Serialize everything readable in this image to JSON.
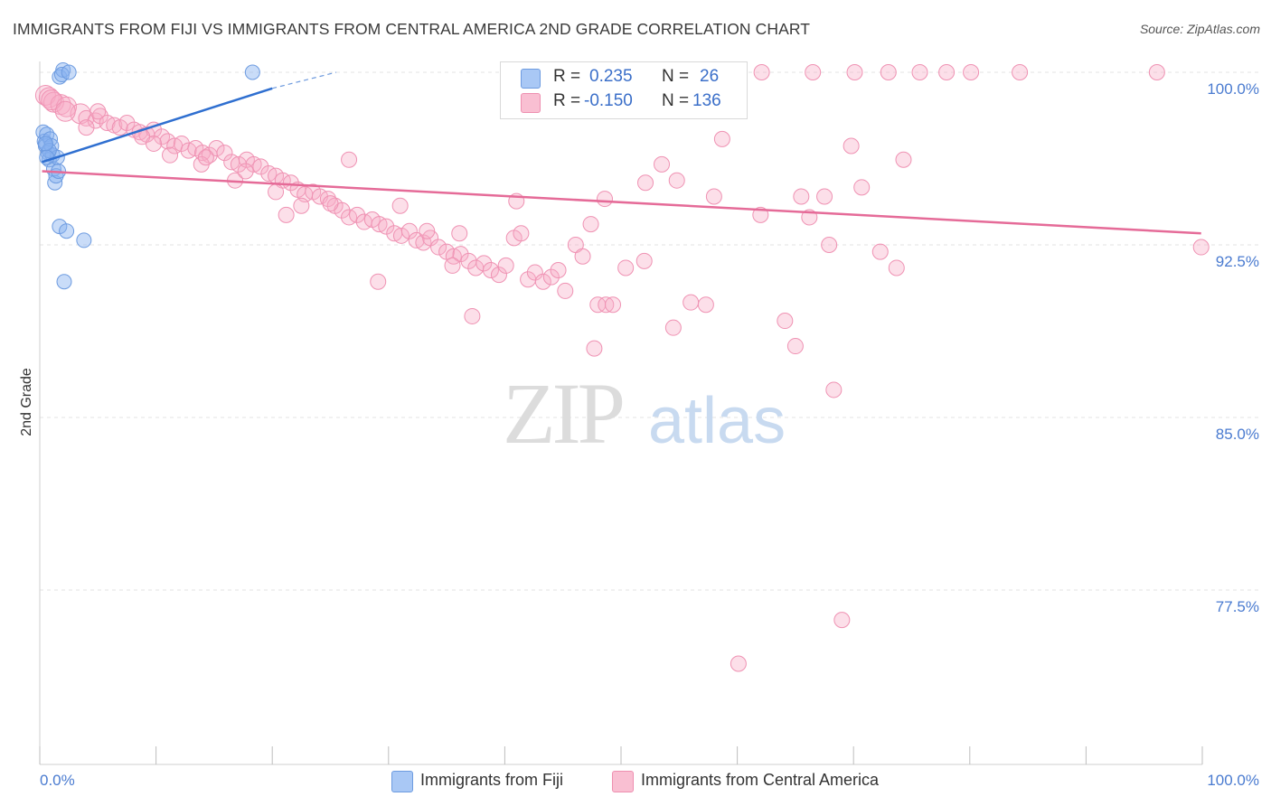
{
  "header": {
    "title": "IMMIGRANTS FROM FIJI VS IMMIGRANTS FROM CENTRAL AMERICA 2ND GRADE CORRELATION CHART",
    "source": "Source: ZipAtlas.com"
  },
  "watermark": {
    "zip": "ZIP",
    "atlas": "atlas"
  },
  "legend": {
    "rows": [
      {
        "r_label": "R =",
        "r_value": "0.235",
        "n_label": "N =",
        "n_value": "26",
        "color": "#a9c8f5",
        "border": "#6d9be0"
      },
      {
        "r_label": "R =",
        "r_value": "-0.150",
        "n_label": "N =",
        "n_value": "136",
        "color": "#f9bfd2",
        "border": "#ee8fb0"
      }
    ]
  },
  "bottom_legend": [
    {
      "label": "Immigrants from Fiji",
      "color": "#a9c8f5",
      "border": "#6d9be0"
    },
    {
      "label": "Immigrants from Central America",
      "color": "#f9bfd2",
      "border": "#ee8fb0"
    }
  ],
  "colors": {
    "fiji_fill": "rgba(135,178,240,0.45)",
    "fiji_stroke": "#6d9be0",
    "fiji_line": "#2f6fd0",
    "ca_fill": "rgba(247,170,198,0.38)",
    "ca_stroke": "#ef92b3",
    "ca_line": "#e56b98",
    "grid": "#e3e3e3",
    "tick_text": "#4a7bd0"
  },
  "chart_data": {
    "type": "scatter",
    "title": "IMMIGRANTS FROM FIJI VS IMMIGRANTS FROM CENTRAL AMERICA 2ND GRADE CORRELATION CHART",
    "xlabel": "",
    "ylabel": "2nd Grade",
    "xlim": [
      0,
      100
    ],
    "ylim": [
      70.0,
      100.5
    ],
    "x_tick_labels": [
      "0.0%",
      "100.0%"
    ],
    "y_ticks": [
      {
        "value": 100.0,
        "label": "100.0%"
      },
      {
        "value": 92.5,
        "label": "92.5%"
      },
      {
        "value": 85.0,
        "label": "85.0%"
      },
      {
        "value": 77.5,
        "label": "77.5%"
      }
    ],
    "grid": true,
    "legend_placement": "top-center",
    "series": [
      {
        "name": "Immigrants from Fiji",
        "R": 0.235,
        "N": 26,
        "trend": {
          "x": [
            0.2,
            20.0
          ],
          "y": [
            96.1,
            99.3
          ],
          "dashed_to": [
            25.5,
            100.0
          ]
        },
        "points": [
          [
            0.3,
            97.4
          ],
          [
            0.4,
            97.0
          ],
          [
            0.5,
            96.8
          ],
          [
            0.6,
            97.3
          ],
          [
            0.7,
            96.5
          ],
          [
            0.8,
            96.2
          ],
          [
            0.9,
            97.1
          ],
          [
            1.0,
            96.8
          ],
          [
            1.1,
            96.4
          ],
          [
            1.2,
            95.8
          ],
          [
            1.3,
            95.2
          ],
          [
            1.4,
            95.5
          ],
          [
            1.5,
            96.3
          ],
          [
            1.6,
            95.7
          ],
          [
            0.8,
            96.6
          ],
          [
            0.5,
            96.9
          ],
          [
            1.7,
            99.8
          ],
          [
            2.0,
            100.1
          ],
          [
            1.9,
            99.9
          ],
          [
            2.5,
            100.0
          ],
          [
            18.3,
            100.0
          ],
          [
            1.7,
            93.3
          ],
          [
            2.3,
            93.1
          ],
          [
            3.8,
            92.7
          ],
          [
            2.1,
            90.9
          ],
          [
            0.6,
            96.3
          ]
        ]
      },
      {
        "name": "Immigrants from Central America",
        "R": -0.15,
        "N": 136,
        "trend": {
          "x": [
            0.2,
            99.9
          ],
          "y": [
            95.7,
            93.0
          ]
        },
        "points": [
          [
            0.5,
            99.0
          ],
          [
            0.8,
            98.9
          ],
          [
            1.2,
            98.7
          ],
          [
            1.8,
            98.6
          ],
          [
            2.3,
            98.5
          ],
          [
            3.5,
            98.2
          ],
          [
            4.0,
            98.0
          ],
          [
            4.8,
            97.9
          ],
          [
            5.2,
            98.1
          ],
          [
            5.8,
            97.8
          ],
          [
            6.4,
            97.7
          ],
          [
            6.9,
            97.6
          ],
          [
            7.5,
            97.8
          ],
          [
            8.1,
            97.5
          ],
          [
            8.6,
            97.4
          ],
          [
            9.2,
            97.3
          ],
          [
            9.8,
            97.5
          ],
          [
            10.5,
            97.2
          ],
          [
            11.0,
            97.0
          ],
          [
            11.6,
            96.8
          ],
          [
            12.2,
            96.9
          ],
          [
            12.8,
            96.6
          ],
          [
            13.4,
            96.7
          ],
          [
            14.0,
            96.5
          ],
          [
            14.6,
            96.4
          ],
          [
            15.2,
            96.7
          ],
          [
            15.9,
            96.5
          ],
          [
            16.5,
            96.1
          ],
          [
            17.1,
            96.0
          ],
          [
            17.8,
            96.2
          ],
          [
            18.4,
            96.0
          ],
          [
            19.0,
            95.9
          ],
          [
            19.7,
            95.6
          ],
          [
            20.3,
            95.5
          ],
          [
            20.9,
            95.3
          ],
          [
            21.6,
            95.2
          ],
          [
            22.2,
            94.9
          ],
          [
            22.8,
            94.7
          ],
          [
            23.5,
            94.8
          ],
          [
            24.1,
            94.6
          ],
          [
            24.8,
            94.5
          ],
          [
            25.4,
            94.2
          ],
          [
            26.0,
            94.0
          ],
          [
            26.6,
            93.7
          ],
          [
            27.3,
            93.8
          ],
          [
            27.9,
            93.5
          ],
          [
            28.6,
            93.6
          ],
          [
            29.2,
            93.4
          ],
          [
            29.8,
            93.3
          ],
          [
            30.5,
            93.0
          ],
          [
            31.1,
            92.9
          ],
          [
            31.8,
            93.1
          ],
          [
            32.4,
            92.7
          ],
          [
            33.0,
            92.6
          ],
          [
            33.6,
            92.8
          ],
          [
            34.3,
            92.4
          ],
          [
            35.0,
            92.2
          ],
          [
            35.6,
            92.0
          ],
          [
            36.2,
            92.1
          ],
          [
            36.9,
            91.8
          ],
          [
            37.5,
            91.5
          ],
          [
            38.2,
            91.7
          ],
          [
            38.8,
            91.4
          ],
          [
            39.5,
            91.2
          ],
          [
            40.1,
            91.6
          ],
          [
            40.8,
            92.8
          ],
          [
            41.4,
            93.0
          ],
          [
            42.0,
            91.0
          ],
          [
            42.6,
            91.3
          ],
          [
            43.3,
            90.9
          ],
          [
            44.0,
            91.1
          ],
          [
            44.6,
            91.4
          ],
          [
            45.2,
            90.5
          ],
          [
            46.1,
            92.5
          ],
          [
            46.7,
            92.0
          ],
          [
            47.4,
            93.4
          ],
          [
            48.0,
            89.9
          ],
          [
            48.7,
            89.9
          ],
          [
            49.3,
            89.9
          ],
          [
            50.4,
            91.5
          ],
          [
            52.1,
            95.2
          ],
          [
            53.5,
            96.0
          ],
          [
            54.8,
            95.3
          ],
          [
            58.7,
            97.1
          ],
          [
            58.0,
            94.6
          ],
          [
            62.0,
            93.8
          ],
          [
            64.1,
            89.2
          ],
          [
            65.0,
            88.1
          ],
          [
            68.3,
            86.2
          ],
          [
            65.5,
            94.6
          ],
          [
            67.5,
            94.6
          ],
          [
            67.9,
            92.5
          ],
          [
            69.8,
            96.8
          ],
          [
            74.3,
            96.2
          ],
          [
            70.7,
            95.0
          ],
          [
            66.2,
            93.7
          ],
          [
            72.3,
            92.2
          ],
          [
            73.7,
            91.5
          ],
          [
            69.0,
            76.2
          ],
          [
            60.1,
            74.3
          ],
          [
            56.0,
            90.0
          ],
          [
            57.3,
            89.9
          ],
          [
            54.5,
            88.9
          ],
          [
            52.0,
            91.8
          ],
          [
            47.7,
            88.0
          ],
          [
            33.3,
            93.1
          ],
          [
            36.1,
            93.0
          ],
          [
            22.5,
            94.2
          ],
          [
            21.2,
            93.8
          ],
          [
            29.1,
            90.9
          ],
          [
            37.2,
            89.4
          ],
          [
            4.0,
            97.6
          ],
          [
            1.0,
            98.8
          ],
          [
            2.2,
            98.3
          ],
          [
            13.9,
            96.0
          ],
          [
            16.8,
            95.3
          ],
          [
            20.3,
            94.8
          ],
          [
            25.0,
            94.3
          ],
          [
            31.0,
            94.2
          ],
          [
            35.5,
            91.6
          ],
          [
            41.0,
            94.4
          ],
          [
            50.0,
            100.0
          ],
          [
            54.1,
            100.0
          ],
          [
            58.2,
            100.0
          ],
          [
            62.1,
            100.0
          ],
          [
            66.5,
            100.0
          ],
          [
            70.1,
            100.0
          ],
          [
            73.0,
            100.0
          ],
          [
            75.7,
            100.0
          ],
          [
            78.0,
            100.0
          ],
          [
            80.1,
            100.0
          ],
          [
            84.3,
            100.0
          ],
          [
            96.1,
            100.0
          ],
          [
            99.9,
            92.4
          ],
          [
            8.8,
            97.2
          ],
          [
            48.6,
            94.5
          ],
          [
            5.0,
            98.3
          ],
          [
            26.6,
            96.2
          ],
          [
            14.3,
            96.3
          ],
          [
            17.7,
            95.7
          ],
          [
            11.2,
            96.4
          ],
          [
            9.8,
            96.9
          ]
        ]
      }
    ]
  }
}
